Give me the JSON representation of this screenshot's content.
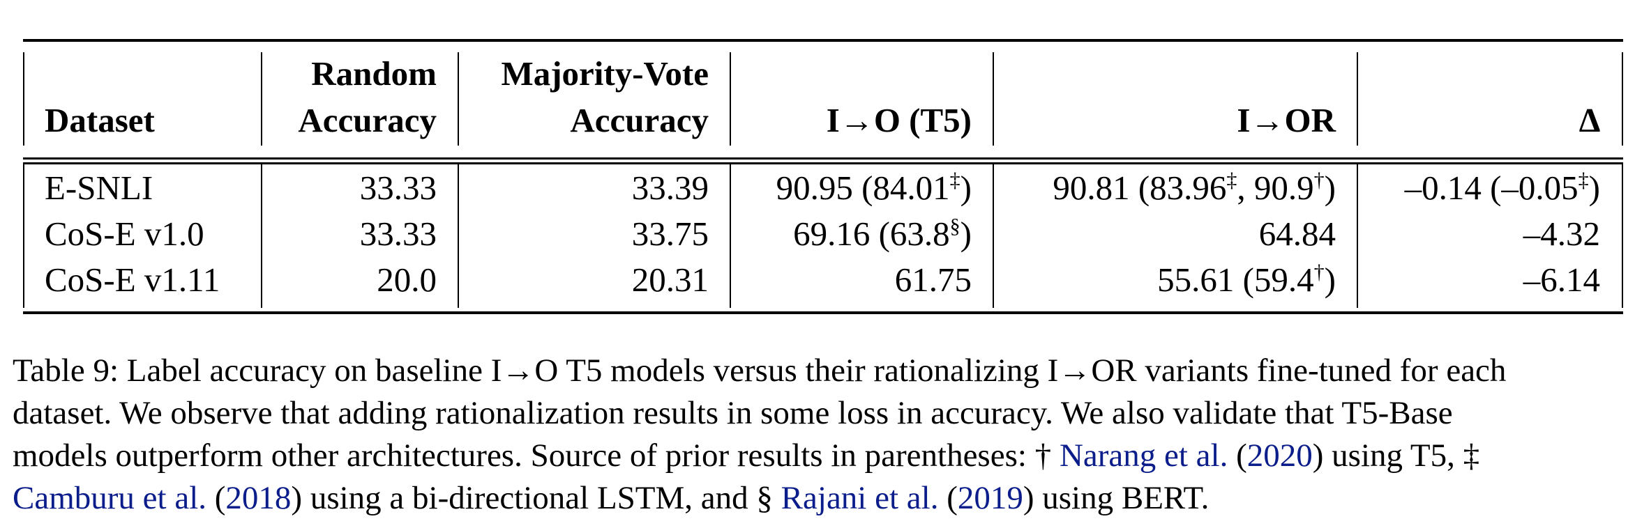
{
  "table": {
    "headers": {
      "dataset": "Dataset",
      "random_l1": "Random",
      "random_l2": "Accuracy",
      "majority_l1": "Majority-Vote",
      "majority_l2": "Accuracy",
      "io": "I→O (T5)",
      "ior": "I→OR",
      "delta": "∆"
    },
    "rows": [
      {
        "dataset": "E-SNLI",
        "random": "33.33",
        "majority": "33.39",
        "io_main": "90.95 (84.01",
        "io_sup": "‡",
        "io_end": ")",
        "ior_main": "90.81 (83.96",
        "ior_sup1": "‡",
        "ior_mid": ", 90.9",
        "ior_sup2": "†",
        "ior_end": ")",
        "delta_main": "–0.14 (–0.05",
        "delta_sup": "‡",
        "delta_end": ")"
      },
      {
        "dataset": "CoS-E v1.0",
        "random": "33.33",
        "majority": "33.75",
        "io_main": "69.16 (63.8",
        "io_sup": "§",
        "io_end": ")",
        "ior_main": "64.84",
        "delta_main": "–4.32"
      },
      {
        "dataset": "CoS-E v1.11",
        "random": "20.0",
        "majority": "20.31",
        "io_main": "61.75",
        "ior_main": "55.61 (59.4",
        "ior_sup": "†",
        "ior_end": ")",
        "delta_main": "–6.14"
      }
    ]
  },
  "caption": {
    "l1": "Table 9: Label accuracy on baseline I→O T5 models versus their rationalizing I→OR variants fine-tuned for each",
    "l2": "dataset. We observe that adding rationalization results in some loss in accuracy. We also validate that T5-Base",
    "l3a": "models outperform other architectures. Source of prior results in parentheses: † ",
    "cite1_name": "Narang et al.",
    "cite1_open": " (",
    "cite1_year": "2020",
    "l3b": ") using T5, ‡",
    "cite2_name": "Camburu et al.",
    "cite2_open": " (",
    "cite2_year": "2018",
    "l4a": ") using a bi-directional LSTM, and § ",
    "cite3_name": "Rajani et al.",
    "cite3_open": " (",
    "cite3_year": "2019",
    "l4b": ") using BERT."
  }
}
